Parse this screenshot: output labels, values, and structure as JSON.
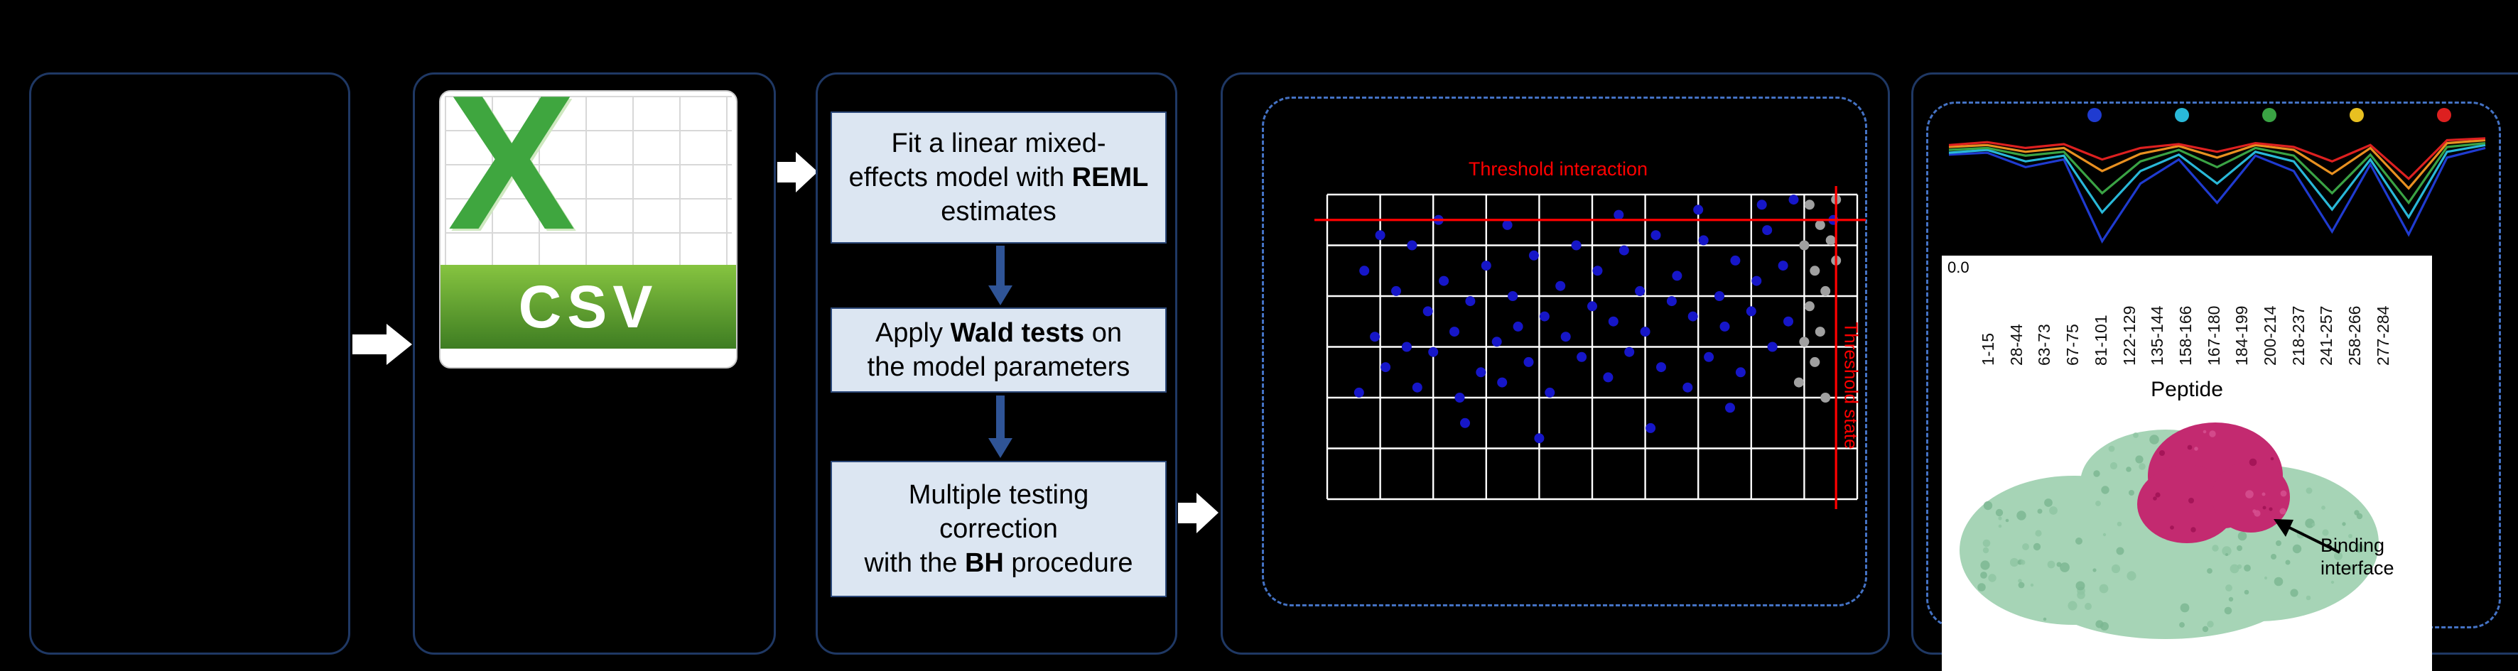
{
  "colors": {
    "background": "#000000",
    "panel_border": "#1f3864",
    "dashed_border": "#4472c4",
    "box_fill": "#dce6f2",
    "box_border": "#2e4a7a",
    "arrow_white": "#ffffff",
    "down_arrow": "#2f5496",
    "threshold_red": "#ff0000",
    "csv_green": "#3fa63f"
  },
  "csv_panel": {
    "x_glyph": "X",
    "label": "CSV"
  },
  "model_panel": {
    "steps": [
      {
        "pre": "Fit a linear mixed-\neffects model with ",
        "bold": "REML",
        "post": " estimates"
      },
      {
        "pre": "Apply ",
        "bold": "Wald tests",
        "post": " on\nthe model parameters"
      },
      {
        "pre": "Multiple testing\ncorrection\nwith the ",
        "bold": "BH",
        "post": " procedure"
      }
    ]
  },
  "results_panel": {
    "annotation": "Binding interface"
  },
  "chart_data": [
    {
      "type": "scatter",
      "title": "",
      "xlabel": "",
      "ylabel": "",
      "xlim": [
        0,
        10
      ],
      "ylim": [
        0,
        6
      ],
      "grid": true,
      "background": "#000000",
      "grid_color": "#ffffff",
      "thresholds": {
        "interaction_y": 5.5,
        "state_x": 9.6
      },
      "threshold_labels": {
        "top": "Threshold interaction",
        "right": "Threshold state"
      },
      "threshold_color": "#ff0000",
      "series": [
        {
          "name": "peptides-significant",
          "color": "#1616c8",
          "points": [
            [
              0.6,
              2.1
            ],
            [
              0.9,
              3.2
            ],
            [
              1.1,
              2.6
            ],
            [
              1.3,
              4.1
            ],
            [
              1.5,
              3.0
            ],
            [
              1.7,
              2.2
            ],
            [
              1.9,
              3.7
            ],
            [
              2.0,
              2.9
            ],
            [
              2.2,
              4.3
            ],
            [
              2.4,
              3.3
            ],
            [
              2.5,
              2.0
            ],
            [
              2.7,
              3.9
            ],
            [
              2.9,
              2.5
            ],
            [
              3.0,
              4.6
            ],
            [
              3.2,
              3.1
            ],
            [
              3.3,
              2.3
            ],
            [
              3.5,
              4.0
            ],
            [
              3.6,
              3.4
            ],
            [
              3.8,
              2.7
            ],
            [
              3.9,
              4.8
            ],
            [
              4.1,
              3.6
            ],
            [
              4.2,
              2.1
            ],
            [
              4.4,
              4.2
            ],
            [
              4.5,
              3.2
            ],
            [
              4.7,
              5.0
            ],
            [
              4.8,
              2.8
            ],
            [
              5.0,
              3.8
            ],
            [
              5.1,
              4.5
            ],
            [
              5.3,
              2.4
            ],
            [
              5.4,
              3.5
            ],
            [
              5.6,
              4.9
            ],
            [
              5.7,
              2.9
            ],
            [
              5.9,
              4.1
            ],
            [
              6.0,
              3.3
            ],
            [
              6.2,
              5.2
            ],
            [
              6.3,
              2.6
            ],
            [
              6.5,
              3.9
            ],
            [
              6.6,
              4.4
            ],
            [
              6.8,
              2.2
            ],
            [
              6.9,
              3.6
            ],
            [
              7.1,
              5.1
            ],
            [
              7.2,
              2.8
            ],
            [
              7.4,
              4.0
            ],
            [
              7.5,
              3.4
            ],
            [
              7.7,
              4.7
            ],
            [
              7.8,
              2.5
            ],
            [
              8.0,
              3.7
            ],
            [
              8.1,
              4.3
            ],
            [
              8.3,
              5.3
            ],
            [
              8.4,
              3.0
            ],
            [
              8.6,
              4.6
            ],
            [
              8.7,
              3.5
            ],
            [
              1.0,
              5.2
            ],
            [
              2.1,
              5.5
            ],
            [
              3.4,
              5.4
            ],
            [
              5.5,
              5.6
            ],
            [
              7.0,
              5.7
            ],
            [
              8.2,
              5.8
            ],
            [
              8.8,
              5.9
            ],
            [
              4.0,
              1.2
            ],
            [
              2.6,
              1.5
            ],
            [
              6.1,
              1.4
            ],
            [
              7.6,
              1.8
            ],
            [
              0.7,
              4.5
            ],
            [
              1.6,
              5.0
            ],
            [
              9.55,
              5.5
            ]
          ]
        },
        {
          "name": "peptides-nonsignificant",
          "color": "#a0a0a0",
          "points": [
            [
              8.9,
              2.3
            ],
            [
              9.0,
              3.1
            ],
            [
              9.1,
              3.8
            ],
            [
              9.2,
              4.5
            ],
            [
              9.0,
              5.0
            ],
            [
              9.3,
              5.4
            ],
            [
              9.1,
              5.8
            ],
            [
              9.2,
              2.7
            ],
            [
              9.4,
              4.1
            ],
            [
              9.3,
              3.3
            ],
            [
              9.5,
              5.1
            ],
            [
              9.6,
              5.9
            ],
            [
              9.6,
              4.7
            ],
            [
              9.4,
              2.0
            ]
          ]
        }
      ]
    },
    {
      "type": "line",
      "title": "",
      "xlabel": "Peptide",
      "ylabel": "",
      "ytick_label": "0.0",
      "ylim": [
        -1.1,
        0.2
      ],
      "legend_position": "top",
      "legend_dots": [
        "#1f3bd0",
        "#29b8d8",
        "#3aa344",
        "#e8c020",
        "#dd2020"
      ],
      "categories": [
        "1-15",
        "28-44",
        "63-73",
        "67-75",
        "81-101",
        "122-129",
        "135-144",
        "158-166",
        "167-180",
        "184-199",
        "200-214",
        "218-237",
        "241-257",
        "258-266",
        "277-284"
      ],
      "series": [
        {
          "name": "blue",
          "color": "#1f3bd0",
          "values": [
            -0.05,
            -0.03,
            -0.18,
            -0.1,
            -0.95,
            -0.35,
            -0.1,
            -0.55,
            -0.06,
            -0.22,
            -0.85,
            -0.15,
            -0.88,
            -0.08,
            0.02
          ]
        },
        {
          "name": "cyan",
          "color": "#29b8d8",
          "values": [
            -0.03,
            0.0,
            -0.12,
            -0.06,
            -0.65,
            -0.22,
            -0.05,
            -0.35,
            -0.02,
            -0.12,
            -0.62,
            -0.1,
            -0.7,
            -0.02,
            0.05
          ]
        },
        {
          "name": "green",
          "color": "#3aa344",
          "values": [
            0.0,
            0.02,
            -0.06,
            -0.02,
            -0.45,
            -0.12,
            0.0,
            -0.18,
            0.02,
            -0.06,
            -0.45,
            -0.05,
            -0.55,
            0.03,
            0.07
          ]
        },
        {
          "name": "orange",
          "color": "#e89020",
          "values": [
            0.03,
            0.05,
            -0.02,
            0.02,
            -0.22,
            -0.04,
            0.04,
            -0.08,
            0.05,
            0.0,
            -0.25,
            0.02,
            -0.4,
            0.07,
            0.1
          ]
        },
        {
          "name": "red",
          "color": "#dd2020",
          "values": [
            0.05,
            0.08,
            0.02,
            0.06,
            -0.1,
            0.02,
            0.06,
            -0.02,
            0.07,
            0.03,
            -0.12,
            0.05,
            -0.3,
            0.1,
            0.12
          ]
        }
      ]
    }
  ]
}
